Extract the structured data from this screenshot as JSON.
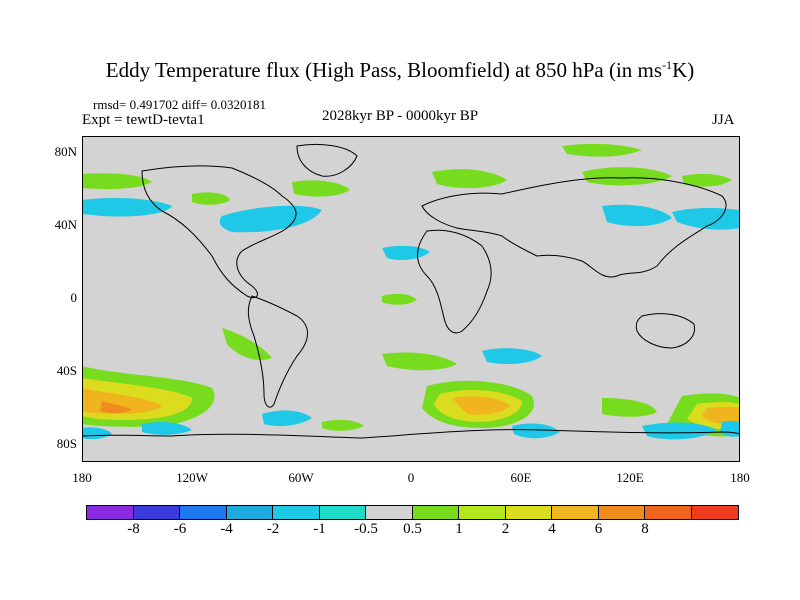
{
  "title": {
    "main": "Eddy Temperature flux (High Pass, Bloomfield) at 850 hPa (in ms",
    "exponent": "-1",
    "unit_end": "K)"
  },
  "stats_line": "rmsd= 0.491702 diff= 0.0320181",
  "experiment": "Expt = tewtD-tevta1",
  "period": "2028kyr BP - 0000kyr BP",
  "season": "JJA",
  "map": {
    "lat_labels": [
      "80N",
      "40N",
      "0",
      "40S",
      "80S"
    ],
    "lon_labels": [
      "180",
      "120W",
      "60W",
      "0",
      "60E",
      "120E",
      "180"
    ],
    "background_color": "#d3d3d3"
  },
  "colorbar": {
    "colors": [
      "#8a2be2",
      "#3c3cdc",
      "#1e78f0",
      "#1eaadc",
      "#1ec8e6",
      "#1edcc8",
      "#d3d3d3",
      "#78dc1e",
      "#b4e61e",
      "#dcdc1e",
      "#f0b41e",
      "#f08c1e",
      "#f0641e",
      "#f03c1e"
    ],
    "labels": [
      "-8",
      "-6",
      "-4",
      "-2",
      "-1",
      "-0.5",
      "0.5",
      "1",
      "2",
      "4",
      "6",
      "8"
    ]
  }
}
